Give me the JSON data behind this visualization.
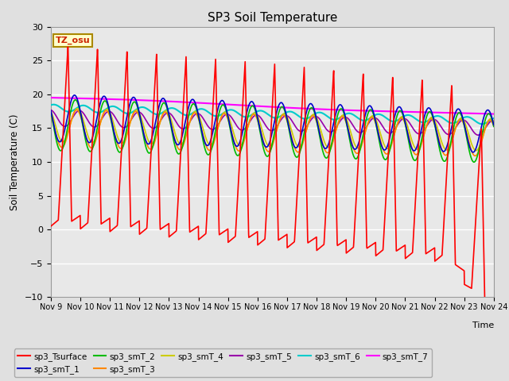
{
  "title": "SP3 Soil Temperature",
  "ylabel": "Soil Temperature (C)",
  "xlim_days": [
    0,
    15
  ],
  "ylim": [
    -10,
    30
  ],
  "yticks": [
    -10,
    -5,
    0,
    5,
    10,
    15,
    20,
    25,
    30
  ],
  "xtick_labels": [
    "Nov 9",
    "Nov 10",
    "Nov 11",
    "Nov 12",
    "Nov 13",
    "Nov 14",
    "Nov 15",
    "Nov 16",
    "Nov 17",
    "Nov 18",
    "Nov 19",
    "Nov 20",
    "Nov 21",
    "Nov 22",
    "Nov 23",
    "Nov 24"
  ],
  "bg_color": "#e0e0e0",
  "plot_bg_color": "#e8e8e8",
  "grid_color": "#ffffff",
  "timezone_label": "TZ_osu",
  "series": {
    "sp3_Tsurface": {
      "color": "#ff0000",
      "lw": 1.2
    },
    "sp3_smT_1": {
      "color": "#0000cc",
      "lw": 1.2
    },
    "sp3_smT_2": {
      "color": "#00bb00",
      "lw": 1.2
    },
    "sp3_smT_3": {
      "color": "#ff8800",
      "lw": 1.2
    },
    "sp3_smT_4": {
      "color": "#cccc00",
      "lw": 1.2
    },
    "sp3_smT_5": {
      "color": "#9900aa",
      "lw": 1.2
    },
    "sp3_smT_6": {
      "color": "#00cccc",
      "lw": 1.5
    },
    "sp3_smT_7": {
      "color": "#ff00ff",
      "lw": 1.5
    }
  },
  "legend_order": [
    "sp3_Tsurface",
    "sp3_smT_1",
    "sp3_smT_2",
    "sp3_smT_3",
    "sp3_smT_4",
    "sp3_smT_5",
    "sp3_smT_6",
    "sp3_smT_7"
  ]
}
